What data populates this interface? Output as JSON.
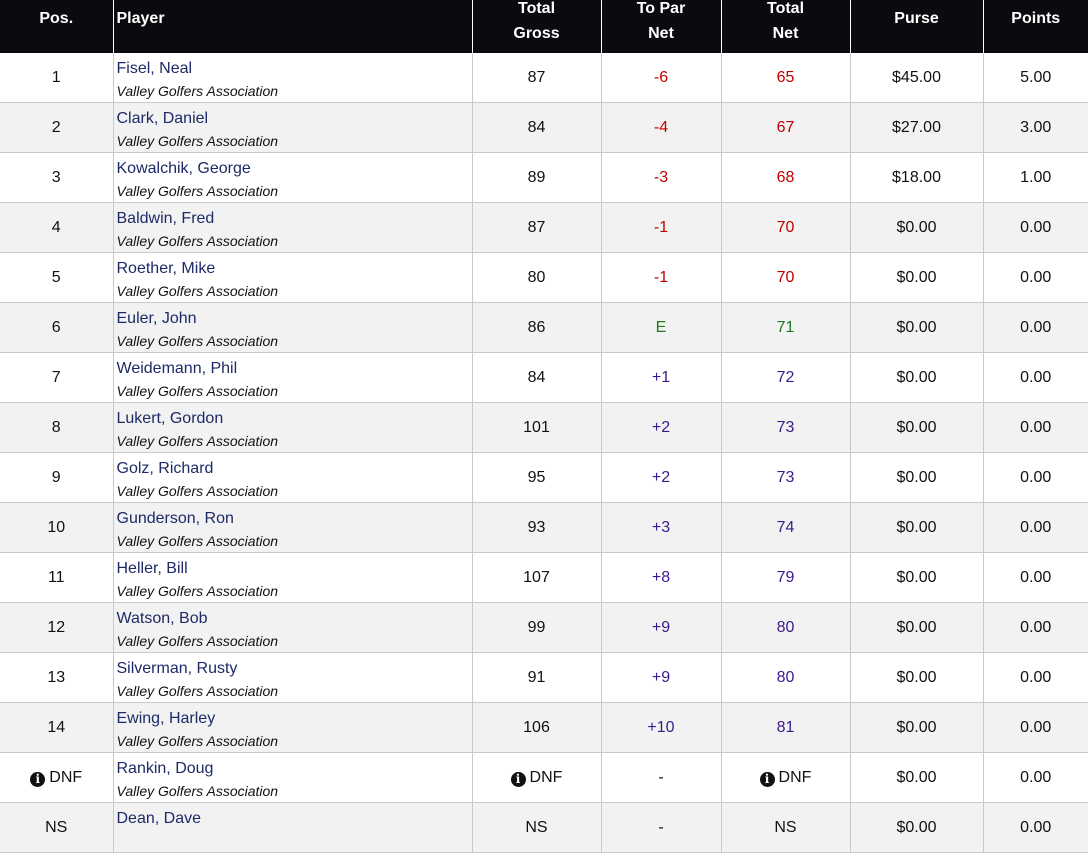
{
  "header": {
    "pos": "Pos.",
    "player": "Player",
    "gross": [
      "Total",
      "Gross"
    ],
    "topar": [
      "To Par",
      "Net"
    ],
    "net": [
      "Total",
      "Net"
    ],
    "purse": "Purse",
    "points": "Points"
  },
  "rows": [
    {
      "pos": "1",
      "name": "Fisel, Neal",
      "club": "Valley Golfers Association",
      "gross": "87",
      "topar": "-6",
      "net": "65",
      "purse": "$45.00",
      "points": "5.00",
      "tone": "red"
    },
    {
      "pos": "2",
      "name": "Clark, Daniel",
      "club": "Valley Golfers Association",
      "gross": "84",
      "topar": "-4",
      "net": "67",
      "purse": "$27.00",
      "points": "3.00",
      "tone": "red"
    },
    {
      "pos": "3",
      "name": "Kowalchik, George",
      "club": "Valley Golfers Association",
      "gross": "89",
      "topar": "-3",
      "net": "68",
      "purse": "$18.00",
      "points": "1.00",
      "tone": "red"
    },
    {
      "pos": "4",
      "name": "Baldwin, Fred",
      "club": "Valley Golfers Association",
      "gross": "87",
      "topar": "-1",
      "net": "70",
      "purse": "$0.00",
      "points": "0.00",
      "tone": "red"
    },
    {
      "pos": "5",
      "name": "Roether, Mike",
      "club": "Valley Golfers Association",
      "gross": "80",
      "topar": "-1",
      "net": "70",
      "purse": "$0.00",
      "points": "0.00",
      "tone": "red"
    },
    {
      "pos": "6",
      "name": "Euler, John",
      "club": "Valley Golfers Association",
      "gross": "86",
      "topar": "E",
      "net": "71",
      "purse": "$0.00",
      "points": "0.00",
      "tone": "green"
    },
    {
      "pos": "7",
      "name": "Weidemann, Phil",
      "club": "Valley Golfers Association",
      "gross": "84",
      "topar": "+1",
      "net": "72",
      "purse": "$0.00",
      "points": "0.00",
      "tone": "purple"
    },
    {
      "pos": "8",
      "name": "Lukert, Gordon",
      "club": "Valley Golfers Association",
      "gross": "101",
      "topar": "+2",
      "net": "73",
      "purse": "$0.00",
      "points": "0.00",
      "tone": "purple"
    },
    {
      "pos": "9",
      "name": "Golz, Richard",
      "club": "Valley Golfers Association",
      "gross": "95",
      "topar": "+2",
      "net": "73",
      "purse": "$0.00",
      "points": "0.00",
      "tone": "purple"
    },
    {
      "pos": "10",
      "name": "Gunderson, Ron",
      "club": "Valley Golfers Association",
      "gross": "93",
      "topar": "+3",
      "net": "74",
      "purse": "$0.00",
      "points": "0.00",
      "tone": "purple"
    },
    {
      "pos": "11",
      "name": "Heller, Bill",
      "club": "Valley Golfers Association",
      "gross": "107",
      "topar": "+8",
      "net": "79",
      "purse": "$0.00",
      "points": "0.00",
      "tone": "purple"
    },
    {
      "pos": "12",
      "name": "Watson, Bob",
      "club": "Valley Golfers Association",
      "gross": "99",
      "topar": "+9",
      "net": "80",
      "purse": "$0.00",
      "points": "0.00",
      "tone": "purple"
    },
    {
      "pos": "13",
      "name": "Silverman, Rusty",
      "club": "Valley Golfers Association",
      "gross": "91",
      "topar": "+9",
      "net": "80",
      "purse": "$0.00",
      "points": "0.00",
      "tone": "purple"
    },
    {
      "pos": "14",
      "name": "Ewing, Harley",
      "club": "Valley Golfers Association",
      "gross": "106",
      "topar": "+10",
      "net": "81",
      "purse": "$0.00",
      "points": "0.00",
      "tone": "purple"
    },
    {
      "pos": "DNF",
      "name": "Rankin, Doug",
      "club": "Valley Golfers Association",
      "gross": "DNF",
      "topar": "-",
      "net": "DNF",
      "purse": "$0.00",
      "points": "0.00",
      "tone": "none",
      "info": true
    },
    {
      "pos": "NS",
      "name": "Dean, Dave",
      "club": "",
      "gross": "NS",
      "topar": "-",
      "net": "NS",
      "purse": "$0.00",
      "points": "0.00",
      "tone": "none"
    }
  ],
  "icons": {
    "info": "info-icon"
  },
  "colors": {
    "header_bg": "#0c0a0e",
    "under_par": "#c00000",
    "even_par": "#1f7a1f",
    "over_par": "#3b1a8c",
    "player_link": "#1e2a66"
  }
}
